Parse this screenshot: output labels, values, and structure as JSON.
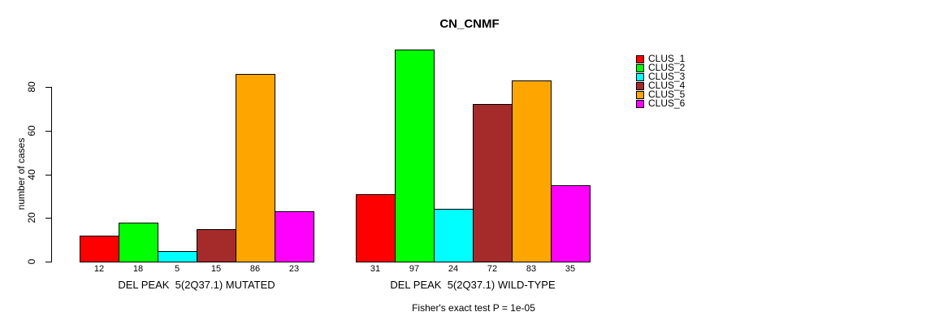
{
  "chart_data": {
    "type": "bar",
    "title": "CN_CNMF",
    "ylabel": "number of cases",
    "footer": "Fisher's exact test P = 1e-05",
    "yticks": [
      0,
      20,
      40,
      60,
      80
    ],
    "ylim": [
      0,
      100
    ],
    "grid": false,
    "legend_position": "right",
    "legend": [
      {
        "label": "CLUS_1",
        "color": "#FF0000"
      },
      {
        "label": "CLUS_2",
        "color": "#00FF00"
      },
      {
        "label": "CLUS_3",
        "color": "#00FFFF"
      },
      {
        "label": "CLUS_4",
        "color": "#A52A2A"
      },
      {
        "label": "CLUS_5",
        "color": "#FFA500"
      },
      {
        "label": "CLUS_6",
        "color": "#FF00FF"
      }
    ],
    "groups": [
      {
        "label": "DEL PEAK  5(2Q37.1) MUTATED",
        "values": [
          12,
          18,
          5,
          15,
          86,
          23
        ]
      },
      {
        "label": "DEL PEAK  5(2Q37.1) WILD-TYPE",
        "values": [
          31,
          97,
          24,
          72,
          83,
          35
        ]
      }
    ]
  }
}
